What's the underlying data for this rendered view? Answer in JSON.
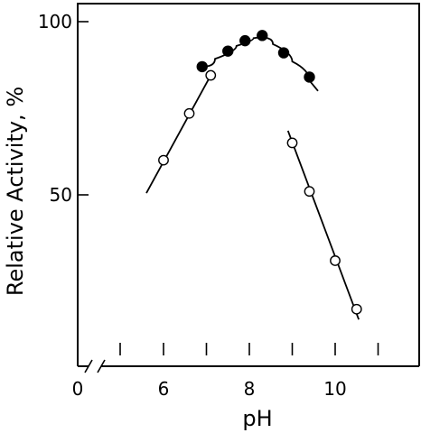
{
  "chart_data": {
    "type": "scatter",
    "xlabel": "pH",
    "ylabel": "Relative Activity, %",
    "x_ticks": [
      {
        "value": 0,
        "label": "0"
      },
      {
        "value": 5.5,
        "label": ""
      },
      {
        "value": 6,
        "label": "6"
      },
      {
        "value": 7,
        "label": ""
      },
      {
        "value": 8,
        "label": "8"
      },
      {
        "value": 9,
        "label": ""
      },
      {
        "value": 10,
        "label": "10"
      },
      {
        "value": 11,
        "label": ""
      }
    ],
    "x_break": true,
    "y_ticks": [
      {
        "value": 50,
        "label": "50"
      },
      {
        "value": 100,
        "label": "100"
      }
    ],
    "xlim": [
      4.4,
      11.9
    ],
    "ylim": [
      10,
      103
    ],
    "grid": false,
    "series": [
      {
        "marker": "filled",
        "points": [
          [
            6.9,
            87
          ],
          [
            7.5,
            91.5
          ],
          [
            7.9,
            94.5
          ],
          [
            8.3,
            96
          ],
          [
            8.8,
            91
          ],
          [
            9.4,
            84
          ]
        ]
      },
      {
        "marker": "open",
        "points": [
          [
            6.0,
            60
          ],
          [
            6.6,
            73.5
          ],
          [
            7.1,
            84.5
          ]
        ]
      },
      {
        "marker": "open",
        "points": [
          [
            9.0,
            65
          ],
          [
            9.4,
            51
          ],
          [
            10.0,
            31
          ],
          [
            10.5,
            17
          ]
        ]
      }
    ],
    "fit_lines": [
      {
        "points": [
          [
            5.6,
            50.5
          ],
          [
            7.1,
            84.5
          ]
        ]
      },
      {
        "points": [
          [
            6.9,
            87
          ],
          [
            7.5,
            91.5
          ],
          [
            7.9,
            94.5
          ],
          [
            8.3,
            96
          ],
          [
            8.8,
            91
          ],
          [
            9.2,
            86
          ],
          [
            9.6,
            80
          ]
        ]
      },
      {
        "points": [
          [
            8.9,
            68.5
          ],
          [
            10.55,
            14
          ]
        ]
      }
    ]
  }
}
